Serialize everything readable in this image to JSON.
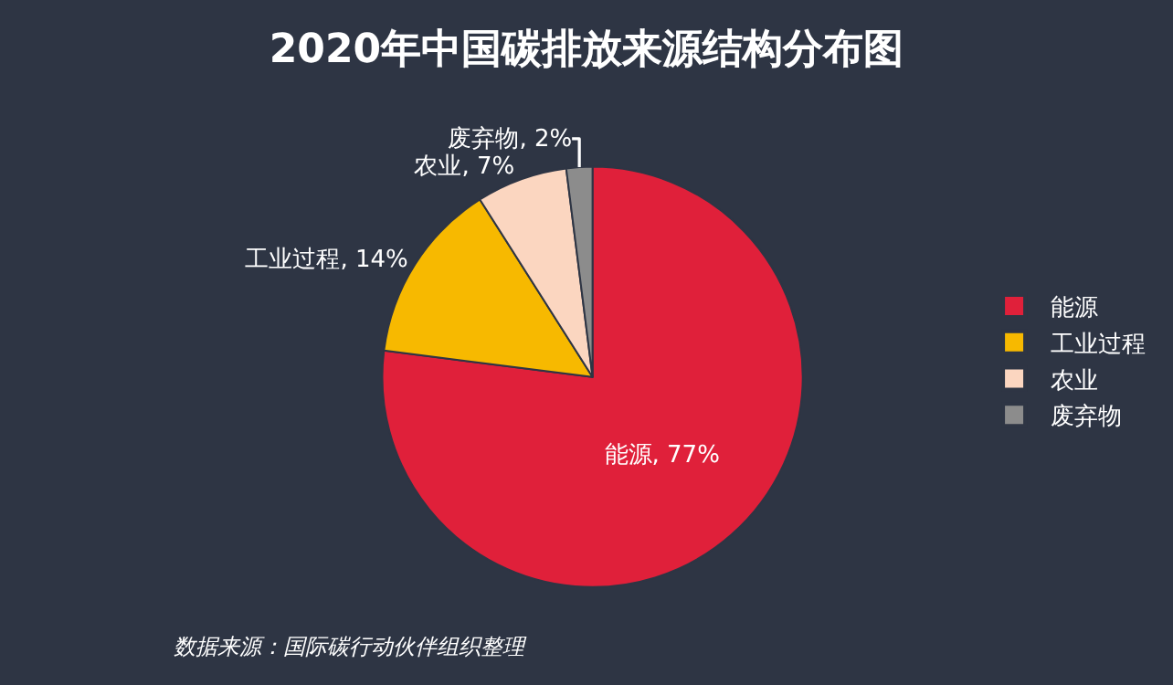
{
  "chart_data": {
    "type": "pie",
    "title": "2020年中国碳排放来源结构分布图",
    "categories": [
      "能源",
      "工业过程",
      "农业",
      "废弃物"
    ],
    "values": [
      77,
      14,
      7,
      2
    ],
    "colors": [
      "#e0203a",
      "#f7b900",
      "#fbd6c0",
      "#8c8c8c"
    ],
    "value_labels": [
      "能源, 77%",
      "工业过程, 14%",
      "农业, 7%",
      "废弃物, 2%"
    ],
    "legend": "right",
    "annotations": [
      "数据来源：国际碳行动伙伴组织整理"
    ]
  }
}
